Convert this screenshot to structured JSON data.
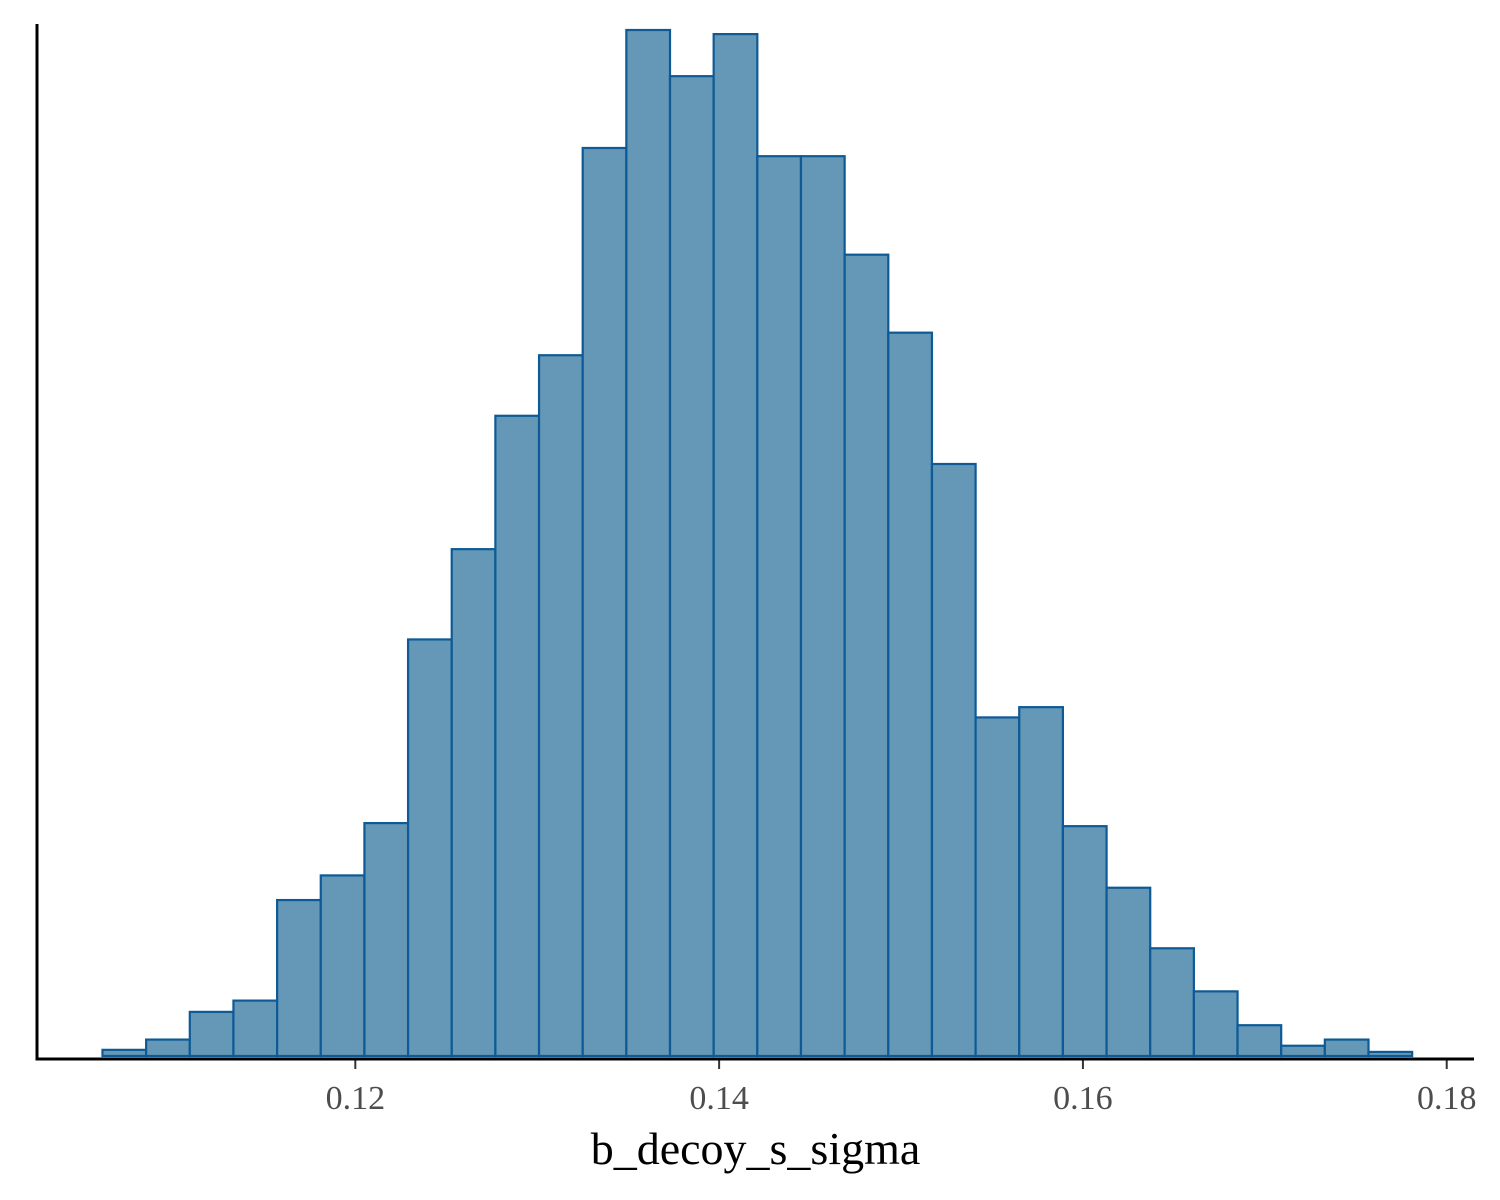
{
  "chart_data": {
    "type": "bar",
    "chart_subtype": "histogram",
    "xlabel": "b_decoy_s_sigma",
    "ylabel": "",
    "title": "",
    "xlim": [
      0.1025,
      0.1815
    ],
    "ylim": [
      0,
      1
    ],
    "x_ticks": [
      {
        "value": 0.12,
        "label": "0.12"
      },
      {
        "value": 0.14,
        "label": "0.14"
      },
      {
        "value": 0.16,
        "label": "0.16"
      },
      {
        "value": 0.18,
        "label": "0.18"
      }
    ],
    "grid": false,
    "legend": "none",
    "colors": {
      "fill": "#6498b6",
      "stroke": "#0d5a96",
      "axis": "#000000"
    },
    "bins": [
      {
        "x0": 0.1061,
        "x1": 0.1085,
        "value": 0.006
      },
      {
        "x0": 0.1085,
        "x1": 0.1109,
        "value": 0.016
      },
      {
        "x0": 0.1109,
        "x1": 0.1133,
        "value": 0.043
      },
      {
        "x0": 0.1133,
        "x1": 0.1157,
        "value": 0.054
      },
      {
        "x0": 0.1157,
        "x1": 0.1181,
        "value": 0.152
      },
      {
        "x0": 0.1181,
        "x1": 0.1205,
        "value": 0.176
      },
      {
        "x0": 0.1205,
        "x1": 0.1229,
        "value": 0.227
      },
      {
        "x0": 0.1229,
        "x1": 0.1253,
        "value": 0.406
      },
      {
        "x0": 0.1253,
        "x1": 0.1277,
        "value": 0.494
      },
      {
        "x0": 0.1277,
        "x1": 0.1301,
        "value": 0.624
      },
      {
        "x0": 0.1301,
        "x1": 0.1325,
        "value": 0.683
      },
      {
        "x0": 0.1325,
        "x1": 0.1349,
        "value": 0.885
      },
      {
        "x0": 0.1349,
        "x1": 0.1373,
        "value": 1.0
      },
      {
        "x0": 0.1373,
        "x1": 0.1397,
        "value": 0.955
      },
      {
        "x0": 0.1397,
        "x1": 0.1421,
        "value": 0.996
      },
      {
        "x0": 0.1421,
        "x1": 0.1445,
        "value": 0.877
      },
      {
        "x0": 0.1445,
        "x1": 0.1469,
        "value": 0.877
      },
      {
        "x0": 0.1469,
        "x1": 0.1493,
        "value": 0.781
      },
      {
        "x0": 0.1493,
        "x1": 0.1517,
        "value": 0.705
      },
      {
        "x0": 0.1517,
        "x1": 0.1541,
        "value": 0.577
      },
      {
        "x0": 0.1541,
        "x1": 0.1565,
        "value": 0.33
      },
      {
        "x0": 0.1565,
        "x1": 0.1589,
        "value": 0.34
      },
      {
        "x0": 0.1589,
        "x1": 0.1613,
        "value": 0.224
      },
      {
        "x0": 0.1613,
        "x1": 0.1637,
        "value": 0.164
      },
      {
        "x0": 0.1637,
        "x1": 0.1661,
        "value": 0.105
      },
      {
        "x0": 0.1661,
        "x1": 0.1685,
        "value": 0.063
      },
      {
        "x0": 0.1685,
        "x1": 0.1709,
        "value": 0.03
      },
      {
        "x0": 0.1709,
        "x1": 0.1733,
        "value": 0.01
      },
      {
        "x0": 0.1733,
        "x1": 0.1757,
        "value": 0.016
      },
      {
        "x0": 0.1757,
        "x1": 0.1781,
        "value": 0.004
      }
    ]
  }
}
